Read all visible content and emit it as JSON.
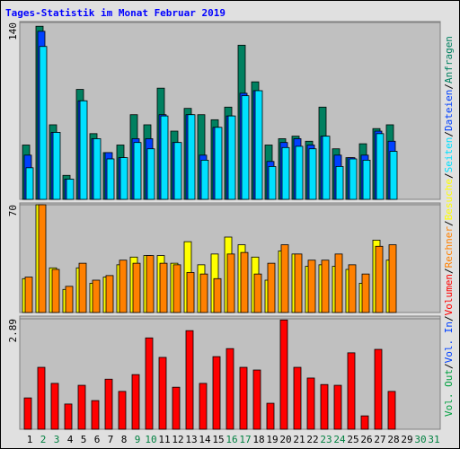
{
  "title": "Tages-Statistik im Monat Februar 2019",
  "legend_separator": "/",
  "chart_data": [
    {
      "type": "bar",
      "ylim": [
        0,
        140
      ],
      "yticks": [
        140
      ],
      "series": [
        {
          "name": "Anfragen",
          "color": "#008060",
          "values": [
            43,
            137,
            59,
            19,
            87,
            52,
            37,
            43,
            67,
            59,
            88,
            54,
            72,
            67,
            63,
            73,
            122,
            93,
            43,
            48,
            50,
            46,
            73,
            40,
            33,
            44,
            56,
            59,
            null,
            null,
            null
          ]
        },
        {
          "name": "Dateien",
          "color": "#0040ff",
          "values": [
            35,
            133,
            53,
            16,
            78,
            48,
            37,
            33,
            48,
            48,
            67,
            45,
            67,
            35,
            57,
            66,
            84,
            86,
            30,
            45,
            48,
            43,
            50,
            35,
            33,
            35,
            54,
            46,
            null,
            null,
            null
          ]
        },
        {
          "name": "Seiten",
          "color": "#00e0ff",
          "values": [
            25,
            121,
            53,
            16,
            78,
            48,
            32,
            33,
            45,
            40,
            66,
            45,
            67,
            31,
            57,
            66,
            82,
            86,
            26,
            41,
            42,
            40,
            50,
            26,
            32,
            31,
            52,
            38,
            null,
            null,
            null
          ]
        }
      ]
    },
    {
      "type": "bar",
      "ylim": [
        0,
        70
      ],
      "yticks": [
        70
      ],
      "series": [
        {
          "name": "Besuche",
          "color": "#ffff00",
          "values": [
            22,
            70,
            29,
            15,
            29,
            19,
            23,
            31,
            36,
            37,
            37,
            32,
            46,
            31,
            38,
            49,
            44,
            36,
            21,
            40,
            38,
            30,
            31,
            30,
            28,
            19,
            47,
            34,
            null,
            null,
            null
          ]
        },
        {
          "name": "Rechner",
          "color": "#ff8000",
          "values": [
            23,
            70,
            28,
            17,
            32,
            21,
            24,
            34,
            32,
            37,
            32,
            31,
            26,
            25,
            22,
            38,
            39,
            25,
            32,
            44,
            38,
            34,
            34,
            38,
            31,
            25,
            43,
            44,
            null,
            null,
            null
          ]
        }
      ]
    },
    {
      "type": "bar",
      "ylim": [
        0,
        2.89
      ],
      "yticks": [
        2.89
      ],
      "categories": [
        "1",
        "2",
        "3",
        "4",
        "5",
        "6",
        "7",
        "8",
        "9",
        "10",
        "11",
        "12",
        "13",
        "14",
        "15",
        "16",
        "17",
        "18",
        "19",
        "20",
        "21",
        "22",
        "23",
        "24",
        "25",
        "26",
        "27",
        "28",
        "29",
        "30",
        "31"
      ],
      "category_colors": [
        "#000000",
        "#008040",
        "#008040",
        "#000000",
        "#000000",
        "#000000",
        "#000000",
        "#000000",
        "#008040",
        "#008040",
        "#000000",
        "#000000",
        "#000000",
        "#000000",
        "#000000",
        "#008040",
        "#008040",
        "#000000",
        "#000000",
        "#000000",
        "#000000",
        "#000000",
        "#008040",
        "#008040",
        "#000000",
        "#000000",
        "#000000",
        "#000000",
        "#000000",
        "#008040",
        "#008040"
      ],
      "series": [
        {
          "name": "Volumen",
          "color": "#ff0000",
          "values": [
            0.82,
            1.62,
            1.2,
            0.66,
            1.15,
            0.75,
            1.31,
            0.99,
            1.43,
            2.39,
            1.88,
            1.1,
            2.58,
            1.2,
            1.9,
            2.11,
            1.62,
            1.55,
            0.68,
            2.86,
            1.62,
            1.34,
            1.17,
            1.15,
            2.0,
            0.35,
            2.09,
            0.99,
            null,
            null,
            null
          ]
        },
        {
          "name": "Vol. In",
          "color": "#0040ff",
          "values": [
            null,
            null,
            null,
            null,
            null,
            null,
            null,
            null,
            null,
            null,
            null,
            null,
            null,
            null,
            null,
            null,
            null,
            null,
            null,
            null,
            null,
            null,
            null,
            null,
            null,
            null,
            null,
            null,
            null,
            null,
            null
          ]
        },
        {
          "name": "Vol. Out",
          "color": "#00a040",
          "values": [
            null,
            null,
            null,
            null,
            null,
            null,
            null,
            null,
            null,
            null,
            null,
            null,
            null,
            null,
            null,
            null,
            null,
            null,
            null,
            null,
            null,
            null,
            null,
            null,
            null,
            null,
            null,
            null,
            null,
            null,
            null
          ]
        }
      ]
    }
  ]
}
